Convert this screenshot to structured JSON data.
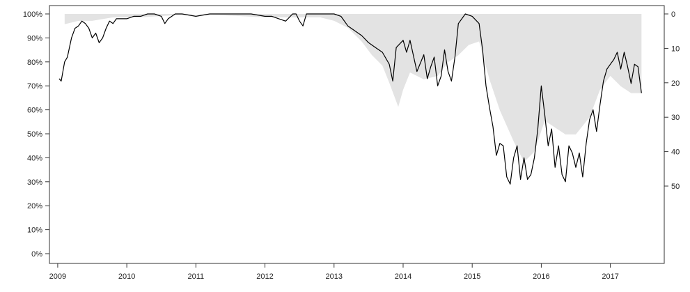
{
  "chart_data": {
    "type": "line",
    "title": "",
    "xlabel": "",
    "ylabel": "",
    "y2label": "",
    "xlim": [
      2009.0,
      2017.8
    ],
    "ylim": [
      0,
      100
    ],
    "y2lim": [
      0,
      70
    ],
    "y2_inverted": true,
    "grid": false,
    "legend": "none",
    "x_ticks": [
      2009,
      2010,
      2011,
      2012,
      2013,
      2014,
      2015,
      2016,
      2017
    ],
    "x_tick_labels": [
      "2009",
      "2010",
      "2011",
      "2012",
      "2013",
      "2014",
      "2015",
      "2016",
      "2017"
    ],
    "y_ticks": [
      0,
      10,
      20,
      30,
      40,
      50,
      60,
      70,
      80,
      90,
      100
    ],
    "y_tick_labels": [
      "0%",
      "10%",
      "20%",
      "30%",
      "40%",
      "50%",
      "60%",
      "70%",
      "80%",
      "90%",
      "100%"
    ],
    "y2_ticks": [
      0,
      10,
      20,
      30,
      40,
      50
    ],
    "y2_tick_labels": [
      "0",
      "10",
      "20",
      "30",
      "40",
      "50"
    ],
    "colors": {
      "line": "#000000",
      "area": "#e3e3e3",
      "axis": "#333333"
    },
    "series": [
      {
        "kind": "line",
        "axis": "left",
        "x": [
          2009.02,
          2009.05,
          2009.1,
          2009.14,
          2009.2,
          2009.25,
          2009.3,
          2009.35,
          2009.4,
          2009.45,
          2009.5,
          2009.55,
          2009.6,
          2009.65,
          2009.7,
          2009.75,
          2009.8,
          2009.85,
          2009.9,
          2010.0,
          2010.1,
          2010.2,
          2010.3,
          2010.4,
          2010.5,
          2010.55,
          2010.6,
          2010.7,
          2010.8,
          2011.0,
          2011.2,
          2011.4,
          2011.6,
          2011.8,
          2012.0,
          2012.1,
          2012.2,
          2012.3,
          2012.4,
          2012.45,
          2012.5,
          2012.55,
          2012.6,
          2012.7,
          2012.8,
          2013.0,
          2013.1,
          2013.2,
          2013.3,
          2013.4,
          2013.5,
          2013.6,
          2013.7,
          2013.8,
          2013.85,
          2013.9,
          2014.0,
          2014.05,
          2014.1,
          2014.2,
          2014.3,
          2014.35,
          2014.4,
          2014.45,
          2014.5,
          2014.55,
          2014.6,
          2014.65,
          2014.7,
          2014.75,
          2014.8,
          2014.9,
          2015.0,
          2015.1,
          2015.15,
          2015.2,
          2015.25,
          2015.3,
          2015.35,
          2015.4,
          2015.45,
          2015.5,
          2015.55,
          2015.6,
          2015.65,
          2015.7,
          2015.75,
          2015.8,
          2015.85,
          2015.9,
          2015.95,
          2016.0,
          2016.05,
          2016.1,
          2016.15,
          2016.2,
          2016.25,
          2016.3,
          2016.35,
          2016.4,
          2016.45,
          2016.5,
          2016.55,
          2016.6,
          2016.65,
          2016.7,
          2016.75,
          2016.8,
          2016.85,
          2016.9,
          2016.95,
          2017.0,
          2017.05,
          2017.1,
          2017.15,
          2017.2,
          2017.25,
          2017.3,
          2017.35,
          2017.4,
          2017.45
        ],
        "values": [
          73,
          72,
          80,
          82,
          90,
          94,
          95,
          97,
          96,
          94,
          90,
          92,
          88,
          90,
          94,
          97,
          96,
          98,
          98,
          98,
          99,
          99,
          100,
          100,
          99,
          96,
          98,
          100,
          100,
          99,
          100,
          100,
          100,
          100,
          99,
          99,
          98,
          97,
          100,
          100,
          97,
          95,
          100,
          100,
          100,
          100,
          99,
          95,
          93,
          91,
          88,
          86,
          84,
          79,
          72,
          86,
          89,
          84,
          89,
          76,
          83,
          73,
          78,
          82,
          70,
          74,
          85,
          76,
          72,
          82,
          96,
          100,
          99,
          96,
          85,
          70,
          61,
          53,
          41,
          46,
          45,
          32,
          29,
          40,
          45,
          31,
          40,
          31,
          33,
          40,
          52,
          70,
          58,
          45,
          52,
          36,
          45,
          33,
          30,
          45,
          42,
          36,
          42,
          32,
          46,
          56,
          60,
          51,
          62,
          72,
          77,
          79,
          81,
          84,
          77,
          84,
          78,
          71,
          79,
          78,
          67
        ]
      },
      {
        "kind": "area",
        "axis": "right",
        "x": [
          2009.1,
          2009.3,
          2009.5,
          2009.8,
          2010.2,
          2011.0,
          2012.0,
          2012.8,
          2013.0,
          2013.2,
          2013.4,
          2013.55,
          2013.7,
          2013.8,
          2013.93,
          2014.0,
          2014.1,
          2014.3,
          2014.5,
          2014.65,
          2014.8,
          2014.95,
          2015.1,
          2015.25,
          2015.4,
          2015.6,
          2015.75,
          2015.9,
          2016.05,
          2016.2,
          2016.35,
          2016.5,
          2016.7,
          2016.85,
          2017.0,
          2017.15,
          2017.3,
          2017.45
        ],
        "values": [
          3,
          2,
          2,
          1,
          1,
          0,
          1,
          1,
          2,
          4,
          8,
          12,
          15,
          20,
          27,
          22,
          17,
          19,
          18,
          14,
          12,
          9,
          8,
          19,
          28,
          37,
          43,
          40,
          31,
          33,
          35,
          35,
          30,
          22,
          18,
          21,
          23,
          23
        ]
      }
    ]
  }
}
